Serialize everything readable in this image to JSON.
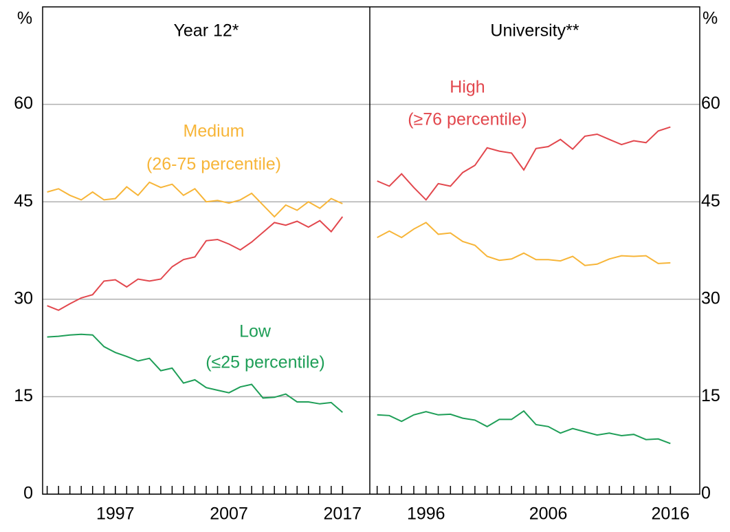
{
  "chart_data": [
    {
      "type": "line",
      "title": "Year 12*",
      "y_label": "%",
      "yaxis_side": "left",
      "x": [
        1991,
        1992,
        1993,
        1994,
        1995,
        1996,
        1997,
        1998,
        1999,
        2000,
        2001,
        2002,
        2003,
        2004,
        2005,
        2006,
        2007,
        2008,
        2009,
        2010,
        2011,
        2012,
        2013,
        2014,
        2015,
        2016,
        2017
      ],
      "xlim": [
        1990.6,
        2019.4
      ],
      "xticks": [
        1997,
        2007,
        2017
      ],
      "ylim": [
        0,
        75
      ],
      "yticks": [
        0,
        15,
        30,
        45,
        60
      ],
      "grid": true,
      "series": [
        {
          "name": "Medium",
          "color": "#f7b538",
          "values": [
            46.5,
            47,
            46,
            45.3,
            46.5,
            45.3,
            45.5,
            47.3,
            46,
            48,
            47.2,
            47.7,
            46,
            47,
            45,
            45.2,
            44.8,
            45.3,
            46.3,
            44.5,
            42.7,
            44.5,
            43.7,
            45,
            44,
            45.5,
            44.7
          ]
        },
        {
          "name": "High",
          "color": "#e2474d",
          "values": [
            29,
            28.3,
            29.3,
            30.2,
            30.7,
            32.8,
            33,
            31.9,
            33.1,
            32.8,
            33.1,
            35,
            36.1,
            36.5,
            39,
            39.2,
            38.5,
            37.6,
            38.8,
            40.3,
            41.8,
            41.4,
            42,
            41.1,
            42.1,
            40.4,
            42.7
          ]
        },
        {
          "name": "Low",
          "color": "#1e9e57",
          "values": [
            24.2,
            24.3,
            24.5,
            24.6,
            24.5,
            22.7,
            21.8,
            21.2,
            20.5,
            20.9,
            19,
            19.4,
            17.1,
            17.6,
            16.4,
            16,
            15.6,
            16.5,
            16.9,
            14.8,
            14.9,
            15.4,
            14.2,
            14.2,
            13.9,
            14.1,
            12.6
          ]
        }
      ],
      "annotations": [
        {
          "text": "Medium",
          "color": "#f7b538"
        },
        {
          "text": "(26-75 percentile)",
          "color": "#f7b538"
        },
        {
          "text": "Low",
          "color": "#1e9e57"
        },
        {
          "text": "(≤25 percentile)",
          "color": "#1e9e57"
        }
      ]
    },
    {
      "type": "line",
      "title": "University**",
      "y_label": "%",
      "yaxis_side": "right",
      "x": [
        1992,
        1993,
        1994,
        1995,
        1996,
        1997,
        1998,
        1999,
        2000,
        2001,
        2002,
        2003,
        2004,
        2005,
        2006,
        2007,
        2008,
        2009,
        2010,
        2011,
        2012,
        2013,
        2014,
        2015,
        2016
      ],
      "xlim": [
        1991.4,
        2018.4
      ],
      "xticks": [
        1996,
        2006,
        2016
      ],
      "ylim": [
        0,
        75
      ],
      "yticks": [
        0,
        15,
        30,
        45,
        60
      ],
      "grid": true,
      "series": [
        {
          "name": "High",
          "color": "#e2474d",
          "values": [
            48.2,
            47.4,
            49.3,
            47.2,
            45.3,
            47.8,
            47.4,
            49.5,
            50.6,
            53.3,
            52.8,
            52.5,
            49.9,
            53.2,
            53.5,
            54.6,
            53.1,
            55.1,
            55.4,
            54.6,
            53.8,
            54.4,
            54.1,
            55.9,
            56.5
          ]
        },
        {
          "name": "Medium",
          "color": "#f7b538",
          "values": [
            39.5,
            40.5,
            39.5,
            40.8,
            41.8,
            40,
            40.2,
            38.9,
            38.3,
            36.6,
            36,
            36.2,
            37.1,
            36.1,
            36.1,
            35.9,
            36.6,
            35.2,
            35.4,
            36.2,
            36.7,
            36.6,
            36.7,
            35.5,
            35.6
          ]
        },
        {
          "name": "Low",
          "color": "#1e9e57",
          "values": [
            12.2,
            12.1,
            11.2,
            12.2,
            12.7,
            12.2,
            12.3,
            11.7,
            11.4,
            10.4,
            11.5,
            11.5,
            12.8,
            10.7,
            10.4,
            9.4,
            10.1,
            9.6,
            9.1,
            9.4,
            9.0,
            9.2,
            8.4,
            8.5,
            7.8
          ]
        }
      ],
      "annotations": [
        {
          "text": "High",
          "color": "#e2474d"
        },
        {
          "text": "(≥76 percentile)",
          "color": "#e2474d"
        }
      ]
    }
  ]
}
